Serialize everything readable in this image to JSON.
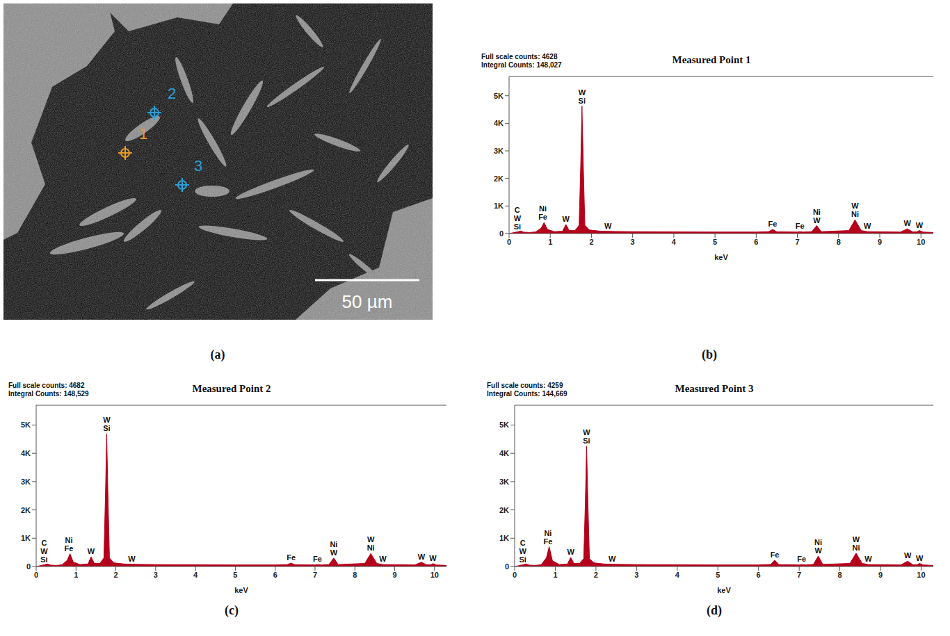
{
  "image": {
    "panel": "(a)",
    "scale_bar": "50 µm",
    "markers": [
      "1",
      "2",
      "3"
    ]
  },
  "chart_data": [
    {
      "type": "area",
      "panel": "(b)",
      "title": "Measured Point 1",
      "header": [
        "Full scale counts: 4628",
        "Integral Counts: 148,027"
      ],
      "x_label": "keV",
      "color": "#b5001b",
      "grid": false,
      "xlim": [
        0,
        10.3
      ],
      "xticks": [
        0,
        1,
        2,
        3,
        4,
        5,
        6,
        7,
        8,
        9,
        10
      ],
      "ylim": [
        0,
        5700
      ],
      "yticks": [
        0,
        {
          "value": 1000,
          "label": "1K"
        },
        {
          "value": 2000,
          "label": "2K"
        },
        {
          "value": 3000,
          "label": "3K"
        },
        {
          "value": 4000,
          "label": "4K"
        },
        {
          "value": 5000,
          "label": "5K"
        }
      ],
      "x": [
        0,
        0.1,
        0.2,
        0.28,
        0.36,
        0.5,
        0.65,
        0.78,
        0.85,
        0.93,
        1.1,
        1.3,
        1.38,
        1.46,
        1.6,
        1.7,
        1.74,
        1.77,
        1.8,
        1.84,
        1.95,
        2.2,
        2.4,
        2.6,
        3,
        4,
        5,
        6,
        6.3,
        6.4,
        6.5,
        7,
        7.06,
        7.15,
        7.35,
        7.47,
        7.58,
        8.25,
        8.4,
        8.55,
        8.7,
        9.5,
        9.67,
        9.8,
        9.9,
        9.96,
        10.05,
        10.3
      ],
      "values": [
        0,
        30,
        60,
        90,
        50,
        40,
        60,
        200,
        400,
        150,
        70,
        90,
        330,
        110,
        110,
        300,
        2500,
        4628,
        2600,
        300,
        130,
        90,
        80,
        75,
        70,
        60,
        55,
        55,
        70,
        150,
        65,
        55,
        70,
        55,
        70,
        290,
        70,
        110,
        500,
        110,
        70,
        55,
        170,
        60,
        60,
        110,
        55,
        40
      ],
      "peak_labels": [
        {
          "x": 0.2,
          "labels": [
            "C",
            "W",
            "Si"
          ]
        },
        {
          "x": 0.82,
          "labels": [
            "Ni",
            "Fe"
          ]
        },
        {
          "x": 1.38,
          "labels": [
            "W"
          ]
        },
        {
          "x": 1.77,
          "labels": [
            "W",
            "Si"
          ]
        },
        {
          "x": 2.4,
          "labels": [
            "W"
          ]
        },
        {
          "x": 6.4,
          "labels": [
            "Fe"
          ]
        },
        {
          "x": 7.06,
          "labels": [
            "Fe"
          ]
        },
        {
          "x": 7.47,
          "labels": [
            "Ni",
            "W"
          ]
        },
        {
          "x": 8.4,
          "labels": [
            "W",
            "Ni"
          ]
        },
        {
          "x": 8.7,
          "labels": [
            "W"
          ]
        },
        {
          "x": 9.67,
          "labels": [
            "W"
          ]
        },
        {
          "x": 9.96,
          "labels": [
            "W"
          ]
        }
      ]
    },
    {
      "type": "area",
      "panel": "(c)",
      "title": "Measured Point 2",
      "header": [
        "Full scale counts: 4682",
        "Integral Counts: 148,529"
      ],
      "x_label": "keV",
      "color": "#b5001b",
      "grid": false,
      "xlim": [
        0,
        10.3
      ],
      "xticks": [
        0,
        1,
        2,
        3,
        4,
        5,
        6,
        7,
        8,
        9,
        10
      ],
      "ylim": [
        0,
        5700
      ],
      "yticks": [
        0,
        {
          "value": 1000,
          "label": "1K"
        },
        {
          "value": 2000,
          "label": "2K"
        },
        {
          "value": 3000,
          "label": "3K"
        },
        {
          "value": 4000,
          "label": "4K"
        },
        {
          "value": 5000,
          "label": "5K"
        }
      ],
      "x": [
        0,
        0.1,
        0.2,
        0.28,
        0.36,
        0.5,
        0.65,
        0.78,
        0.85,
        0.93,
        1.1,
        1.3,
        1.38,
        1.46,
        1.6,
        1.7,
        1.74,
        1.77,
        1.8,
        1.84,
        1.95,
        2.2,
        2.4,
        2.6,
        3,
        4,
        5,
        6,
        6.3,
        6.4,
        6.5,
        7,
        7.06,
        7.15,
        7.35,
        7.47,
        7.58,
        8.25,
        8.4,
        8.55,
        8.7,
        9.5,
        9.67,
        9.8,
        9.9,
        9.96,
        10.05,
        10.3
      ],
      "values": [
        0,
        30,
        60,
        90,
        50,
        40,
        60,
        220,
        450,
        160,
        70,
        90,
        340,
        110,
        110,
        300,
        2550,
        4682,
        2650,
        300,
        130,
        90,
        80,
        75,
        70,
        60,
        55,
        55,
        65,
        120,
        60,
        55,
        65,
        55,
        70,
        300,
        70,
        110,
        460,
        110,
        70,
        55,
        150,
        60,
        60,
        100,
        55,
        40
      ],
      "peak_labels": [
        {
          "x": 0.2,
          "labels": [
            "C",
            "W",
            "Si"
          ]
        },
        {
          "x": 0.82,
          "labels": [
            "Ni",
            "Fe"
          ]
        },
        {
          "x": 1.38,
          "labels": [
            "W"
          ]
        },
        {
          "x": 1.77,
          "labels": [
            "W",
            "Si"
          ]
        },
        {
          "x": 2.4,
          "labels": [
            "W"
          ]
        },
        {
          "x": 6.4,
          "labels": [
            "Fe"
          ]
        },
        {
          "x": 7.06,
          "labels": [
            "Fe"
          ]
        },
        {
          "x": 7.47,
          "labels": [
            "Ni",
            "W"
          ]
        },
        {
          "x": 8.4,
          "labels": [
            "W",
            "Ni"
          ]
        },
        {
          "x": 8.7,
          "labels": [
            "W"
          ]
        },
        {
          "x": 9.67,
          "labels": [
            "W"
          ]
        },
        {
          "x": 9.96,
          "labels": [
            "W"
          ]
        }
      ]
    },
    {
      "type": "area",
      "panel": "(d)",
      "title": "Measured Point 3",
      "header": [
        "Full scale counts: 4259",
        "Integral Counts: 144,669"
      ],
      "x_label": "keV",
      "color": "#b5001b",
      "grid": false,
      "xlim": [
        0,
        10.3
      ],
      "xticks": [
        0,
        1,
        2,
        3,
        4,
        5,
        6,
        7,
        8,
        9,
        10
      ],
      "ylim": [
        0,
        5700
      ],
      "yticks": [
        0,
        {
          "value": 1000,
          "label": "1K"
        },
        {
          "value": 2000,
          "label": "2K"
        },
        {
          "value": 3000,
          "label": "3K"
        },
        {
          "value": 4000,
          "label": "4K"
        },
        {
          "value": 5000,
          "label": "5K"
        }
      ],
      "x": [
        0,
        0.1,
        0.2,
        0.28,
        0.36,
        0.5,
        0.65,
        0.78,
        0.85,
        0.93,
        1.1,
        1.3,
        1.38,
        1.46,
        1.6,
        1.7,
        1.74,
        1.77,
        1.8,
        1.84,
        1.95,
        2.2,
        2.4,
        2.6,
        3,
        4,
        5,
        6,
        6.3,
        6.4,
        6.5,
        7,
        7.06,
        7.15,
        7.35,
        7.47,
        7.58,
        8.25,
        8.4,
        8.55,
        8.7,
        9.5,
        9.67,
        9.8,
        9.9,
        9.96,
        10.05,
        10.3
      ],
      "values": [
        0,
        30,
        60,
        90,
        50,
        40,
        60,
        300,
        700,
        200,
        70,
        90,
        320,
        110,
        110,
        280,
        2300,
        4259,
        2400,
        280,
        130,
        90,
        80,
        75,
        70,
        60,
        55,
        55,
        75,
        220,
        70,
        55,
        70,
        55,
        75,
        370,
        75,
        110,
        470,
        110,
        70,
        55,
        190,
        60,
        60,
        110,
        55,
        40
      ],
      "peak_labels": [
        {
          "x": 0.2,
          "labels": [
            "C",
            "W",
            "Si"
          ]
        },
        {
          "x": 0.82,
          "labels": [
            "Ni",
            "Fe"
          ]
        },
        {
          "x": 1.38,
          "labels": [
            "W"
          ]
        },
        {
          "x": 1.77,
          "labels": [
            "W",
            "Si"
          ]
        },
        {
          "x": 2.4,
          "labels": [
            "W"
          ]
        },
        {
          "x": 6.4,
          "labels": [
            "Fe"
          ]
        },
        {
          "x": 7.06,
          "labels": [
            "Fe"
          ]
        },
        {
          "x": 7.47,
          "labels": [
            "Ni",
            "W"
          ]
        },
        {
          "x": 8.4,
          "labels": [
            "W",
            "Ni"
          ]
        },
        {
          "x": 8.7,
          "labels": [
            "W"
          ]
        },
        {
          "x": 9.67,
          "labels": [
            "W"
          ]
        },
        {
          "x": 9.96,
          "labels": [
            "W"
          ]
        }
      ]
    }
  ]
}
